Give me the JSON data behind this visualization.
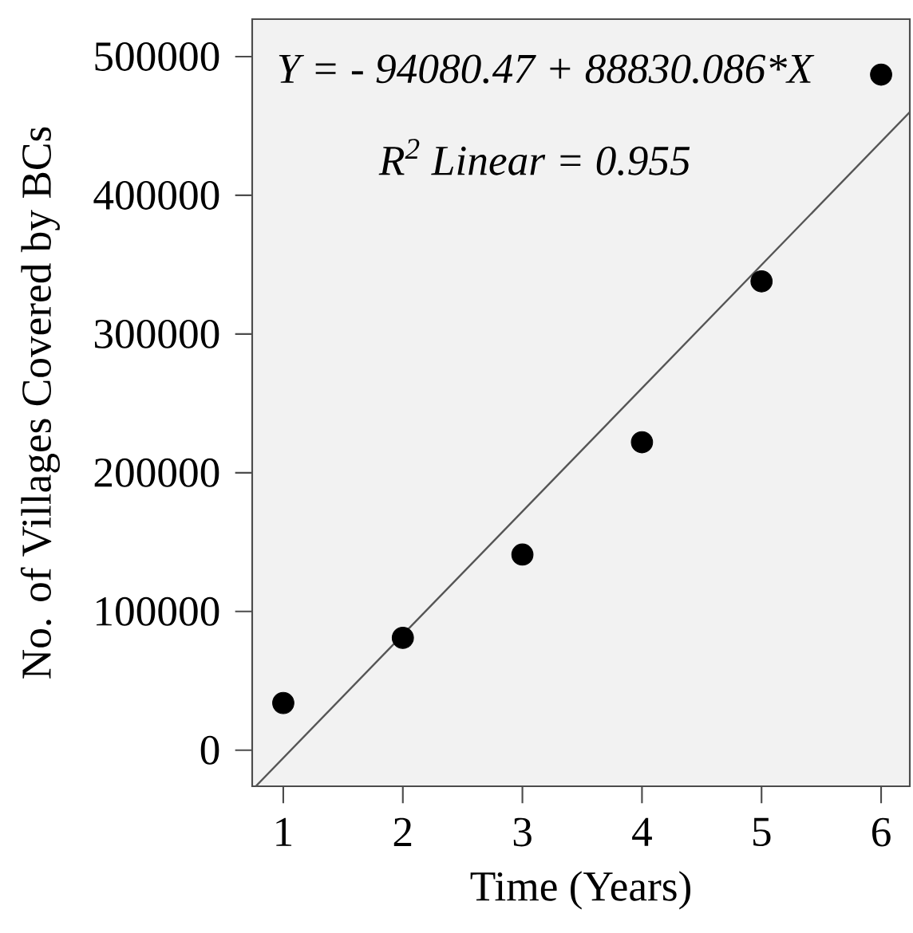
{
  "chart_data": {
    "type": "scatter",
    "xlabel": "Time (Years)",
    "ylabel": "No. of Villages Covered by BCs",
    "annotations": [
      "Y = - 94080.47 + 88830.086*X",
      "R$^{2}$  Linear =  0.955"
    ],
    "x": [
      1,
      2,
      3,
      4,
      5,
      6
    ],
    "series": [
      {
        "color": "#000000",
        "marker": "circle",
        "values": [
          34000,
          81000,
          141000,
          222000,
          338000,
          487000
        ]
      },
      {
        "type": "line",
        "color": "#555555",
        "x": [
          0.77,
          6.24
        ],
        "values": [
          -26000,
          460000
        ]
      }
    ],
    "xlim": [
      0.74,
      6.24
    ],
    "ylim": [
      -26000,
      527000
    ],
    "xticks": [
      1,
      2,
      3,
      4,
      5,
      6
    ],
    "yticks": [
      0,
      100000,
      200000,
      300000,
      400000,
      500000
    ]
  }
}
